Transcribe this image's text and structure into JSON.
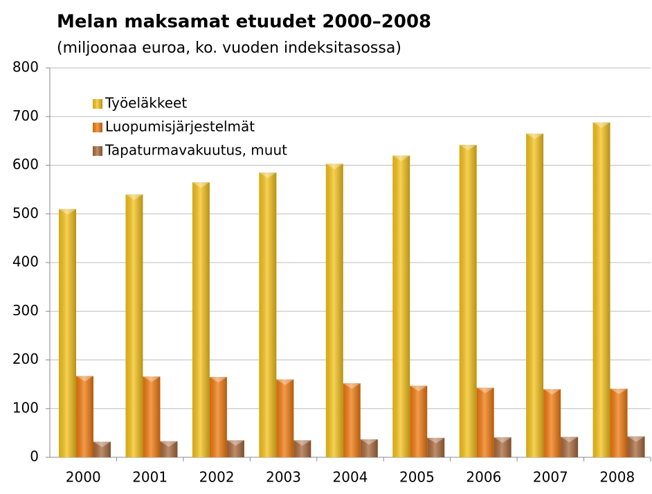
{
  "chart_data": {
    "type": "bar",
    "title": "Melan maksamat etuudet 2000–2008",
    "subtitle": "(miljoonaa euroa, ko. vuoden indeksitasossa)",
    "categories": [
      "2000",
      "2001",
      "2002",
      "2003",
      "2004",
      "2005",
      "2006",
      "2007",
      "2008"
    ],
    "series": [
      {
        "name": "Työeläkkeet",
        "color": "#f5c21b",
        "values": [
          510,
          540,
          565,
          585,
          603,
          620,
          642,
          665,
          688
        ]
      },
      {
        "name": "Luopumisjärjestelmät",
        "color": "#f07a10",
        "values": [
          167,
          166,
          165,
          160,
          152,
          147,
          143,
          140,
          141
        ]
      },
      {
        "name": "Tapaturmavakuutus, muut",
        "color": "#a8693c",
        "values": [
          32,
          33,
          35,
          35,
          37,
          40,
          41,
          42,
          43
        ]
      }
    ],
    "ylim": [
      0,
      800
    ],
    "yticks": [
      0,
      100,
      200,
      300,
      400,
      500,
      600,
      700,
      800
    ],
    "grid": true,
    "legend": "top-left"
  }
}
